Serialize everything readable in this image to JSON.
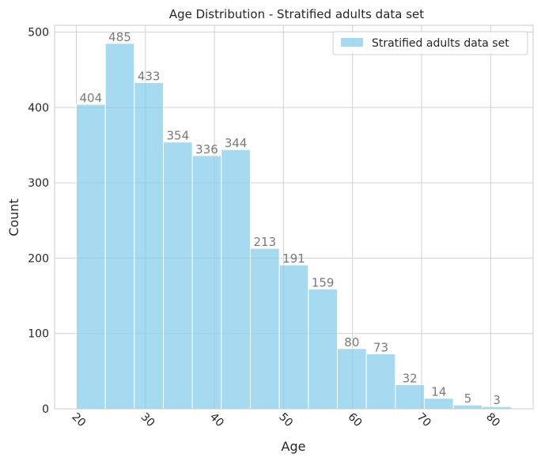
{
  "chart_data": {
    "type": "bar",
    "title": "Age Distribution - Stratified adults data set",
    "xlabel": "Age",
    "ylabel": "Count",
    "bin_edges": [
      20.0,
      24.2,
      28.4,
      32.6,
      36.8,
      41.0,
      45.2,
      49.4,
      53.6,
      57.8,
      62.0,
      66.2,
      70.4,
      74.6,
      78.8,
      83.0
    ],
    "values": [
      404,
      485,
      433,
      354,
      336,
      344,
      213,
      191,
      159,
      80,
      73,
      32,
      14,
      5,
      3
    ],
    "data_labels": [
      "404",
      "485",
      "433",
      "354",
      "336",
      "344",
      "213",
      "191",
      "159",
      "80",
      "73",
      "32",
      "14",
      "5",
      "3"
    ],
    "x_ticks": [
      20,
      30,
      40,
      50,
      60,
      70,
      80
    ],
    "x_tick_labels": [
      "20",
      "30",
      "40",
      "50",
      "60",
      "70",
      "80"
    ],
    "y_ticks": [
      0,
      100,
      200,
      300,
      400,
      500
    ],
    "y_tick_labels": [
      "0",
      "100",
      "200",
      "300",
      "400",
      "500"
    ],
    "xlim": [
      16.85,
      86.15
    ],
    "ylim": [
      0,
      509
    ],
    "grid": true,
    "legend": {
      "position": "top-right",
      "entries": [
        "Stratified adults data set"
      ]
    },
    "colors": {
      "bar": "#87ceeb",
      "bar_edge": "#ffffff",
      "data_label": "#7a7a7a",
      "grid": "#d0d0d0",
      "text": "#262626"
    }
  }
}
